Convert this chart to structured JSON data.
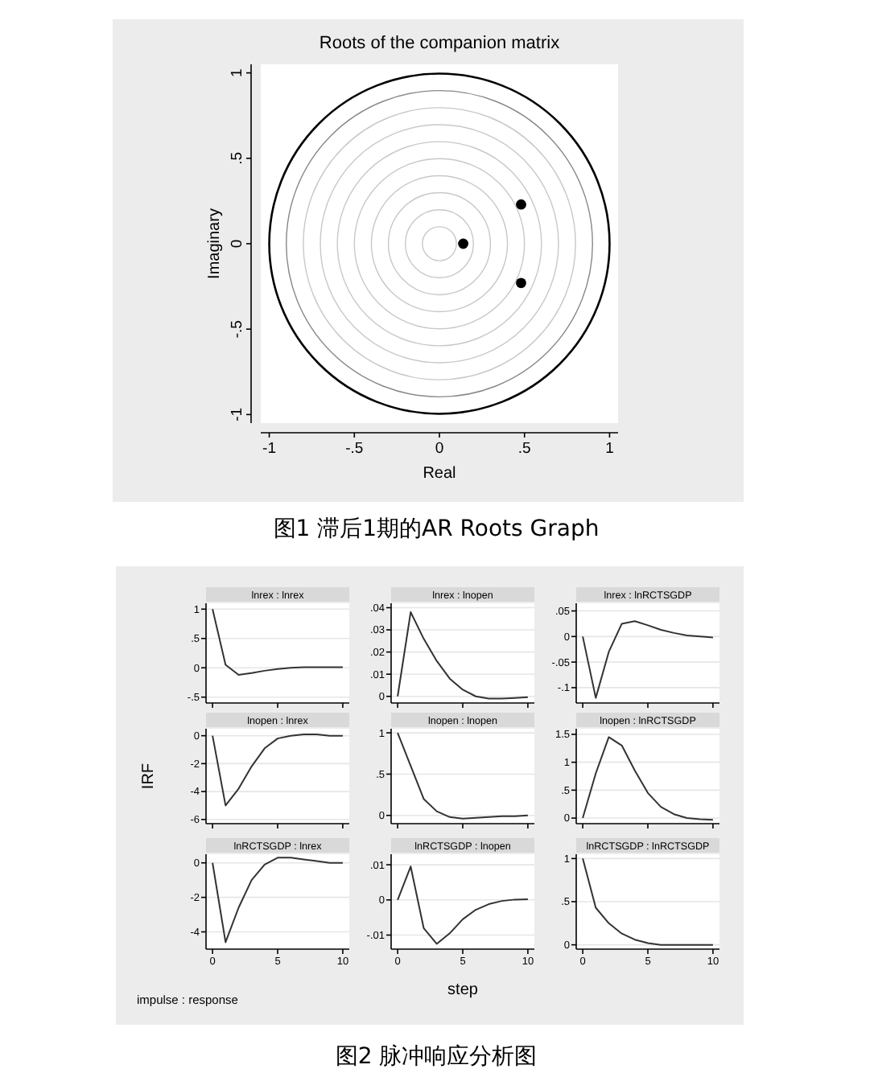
{
  "chart_data": [
    {
      "type": "scatter",
      "title": "Roots of the companion matrix",
      "xlabel": "Real",
      "ylabel": "Imaginary",
      "x": [
        0.14,
        0.48,
        0.48
      ],
      "values": [
        0,
        0.23,
        -0.23
      ],
      "color": "#000000",
      "marker": "circle",
      "xlim": [
        -1.05,
        1.05
      ],
      "ylim": [
        -1.05,
        1.05
      ],
      "xticks": [
        {
          "value": -1,
          "label": "-1"
        },
        {
          "value": -0.5,
          "label": "-.5"
        },
        {
          "value": 0,
          "label": "0"
        },
        {
          "value": 0.5,
          "label": ".5"
        },
        {
          "value": 1,
          "label": "1"
        }
      ],
      "yticks": [
        {
          "value": -1,
          "label": "-1"
        },
        {
          "value": -0.5,
          "label": "-.5"
        },
        {
          "value": 0,
          "label": "0"
        },
        {
          "value": 0.5,
          "label": ".5"
        },
        {
          "value": 1,
          "label": "1"
        }
      ],
      "annotations": [
        "图1 滞后1期的AR Roots Graph"
      ]
    },
    {
      "type": "line",
      "title": "lnrex : lnrex",
      "x": [
        0,
        1,
        2,
        3,
        4,
        5,
        6,
        7,
        8,
        9,
        10
      ],
      "values": [
        1,
        0.05,
        -0.12,
        -0.09,
        -0.05,
        -0.02,
        0,
        0.01,
        0.01,
        0.01,
        0.01
      ],
      "color": "#333333",
      "xlim": [
        -0.5,
        10.5
      ],
      "ylim": [
        -0.6,
        1.1
      ],
      "yticks": [
        {
          "value": -0.5,
          "label": "-.5"
        },
        0,
        {
          "value": 0.5,
          "label": ".5"
        },
        1
      ],
      "xticks": [
        0,
        5,
        10
      ],
      "grid": "y",
      "tick_labels": "y"
    },
    {
      "type": "line",
      "title": "lnrex : lnopen",
      "x": [
        0,
        1,
        2,
        3,
        4,
        5,
        6,
        7,
        8,
        9,
        10
      ],
      "values": [
        0,
        0.038,
        0.026,
        0.016,
        0.008,
        0.003,
        0,
        -0.001,
        -0.001,
        -0.0007,
        -0.0004
      ],
      "color": "#333333",
      "xlim": [
        -0.5,
        10.5
      ],
      "ylim": [
        -0.003,
        0.042
      ],
      "yticks": [
        0,
        {
          "value": 0.01,
          "label": ".01"
        },
        {
          "value": 0.02,
          "label": ".02"
        },
        {
          "value": 0.03,
          "label": ".03"
        },
        {
          "value": 0.04,
          "label": ".04"
        }
      ],
      "xticks": [
        0,
        5,
        10
      ],
      "grid": "y",
      "tick_labels": "y"
    },
    {
      "type": "line",
      "title": "lnrex : lnRCTSGDP",
      "x": [
        0,
        1,
        2,
        3,
        4,
        5,
        6,
        7,
        8,
        9,
        10
      ],
      "values": [
        0,
        -0.12,
        -0.03,
        0.025,
        0.03,
        0.022,
        0.013,
        0.007,
        0.002,
        0,
        -0.002
      ],
      "color": "#333333",
      "xlim": [
        -0.5,
        10.5
      ],
      "ylim": [
        -0.13,
        0.065
      ],
      "yticks": [
        {
          "value": -0.1,
          "label": "-.1"
        },
        {
          "value": -0.05,
          "label": "-.05"
        },
        0,
        {
          "value": 0.05,
          "label": ".05"
        }
      ],
      "xticks": [
        0,
        5,
        10
      ],
      "grid": "y",
      "tick_labels": "y"
    },
    {
      "type": "line",
      "title": "lnopen : lnrex",
      "ylabel": "IRF",
      "x": [
        0,
        1,
        2,
        3,
        4,
        5,
        6,
        7,
        8,
        9,
        10
      ],
      "values": [
        0,
        -5,
        -3.8,
        -2.2,
        -0.9,
        -0.2,
        0,
        0.1,
        0.1,
        0,
        0
      ],
      "color": "#333333",
      "xlim": [
        -0.5,
        10.5
      ],
      "ylim": [
        -6.3,
        0.5
      ],
      "yticks": [
        -6,
        -4,
        -2,
        0
      ],
      "xticks": [
        0,
        5,
        10
      ],
      "grid": "y",
      "tick_labels": "y"
    },
    {
      "type": "line",
      "title": "lnopen : lnopen",
      "x": [
        0,
        1,
        2,
        3,
        4,
        5,
        6,
        7,
        8,
        9,
        10
      ],
      "values": [
        1,
        0.6,
        0.2,
        0.05,
        -0.02,
        -0.04,
        -0.03,
        -0.02,
        -0.01,
        -0.01,
        0
      ],
      "color": "#333333",
      "xlim": [
        -0.5,
        10.5
      ],
      "ylim": [
        -0.1,
        1.05
      ],
      "yticks": [
        0,
        {
          "value": 0.5,
          "label": ".5"
        },
        1
      ],
      "xticks": [
        0,
        5,
        10
      ],
      "grid": "y",
      "tick_labels": "y"
    },
    {
      "type": "line",
      "title": "lnopen : lnRCTSGDP",
      "x": [
        0,
        1,
        2,
        3,
        4,
        5,
        6,
        7,
        8,
        9,
        10
      ],
      "values": [
        0,
        0.8,
        1.45,
        1.3,
        0.85,
        0.45,
        0.2,
        0.07,
        0,
        -0.02,
        -0.03
      ],
      "color": "#333333",
      "xlim": [
        -0.5,
        10.5
      ],
      "ylim": [
        -0.1,
        1.6
      ],
      "yticks": [
        0,
        {
          "value": 0.5,
          "label": ".5"
        },
        1,
        {
          "value": 1.5,
          "label": "1.5"
        }
      ],
      "xticks": [
        0,
        5,
        10
      ],
      "grid": "y",
      "tick_labels": "y"
    },
    {
      "type": "line",
      "title": "lnRCTSGDP : lnrex",
      "annotations": [
        "impulse : response",
        "图2 脉冲响应分析图"
      ],
      "x": [
        0,
        1,
        2,
        3,
        4,
        5,
        6,
        7,
        8,
        9,
        10
      ],
      "values": [
        0,
        -4.6,
        -2.6,
        -1,
        -0.1,
        0.3,
        0.3,
        0.2,
        0.1,
        0,
        0
      ],
      "color": "#333333",
      "xlim": [
        -0.5,
        10.5
      ],
      "ylim": [
        -5,
        0.5
      ],
      "yticks": [
        -4,
        -2,
        0
      ],
      "xticks": [
        0,
        5,
        10
      ],
      "grid": "y"
    },
    {
      "type": "line",
      "title": "lnRCTSGDP : lnopen",
      "xlabel": "step",
      "x": [
        0,
        1,
        2,
        3,
        4,
        5,
        6,
        7,
        8,
        9,
        10
      ],
      "values": [
        0,
        0.0095,
        -0.008,
        -0.0125,
        -0.0095,
        -0.0055,
        -0.0028,
        -0.0012,
        -0.0003,
        0.0001,
        0.0002
      ],
      "color": "#333333",
      "xlim": [
        -0.5,
        10.5
      ],
      "ylim": [
        -0.014,
        0.013
      ],
      "yticks": [
        {
          "value": -0.01,
          "label": "-.01"
        },
        0,
        {
          "value": 0.01,
          "label": ".01"
        }
      ],
      "xticks": [
        0,
        5,
        10
      ],
      "grid": "y"
    },
    {
      "type": "line",
      "title": "lnRCTSGDP : lnRCTSGDP",
      "x": [
        0,
        1,
        2,
        3,
        4,
        5,
        6,
        7,
        8,
        9,
        10
      ],
      "values": [
        1,
        0.43,
        0.25,
        0.13,
        0.06,
        0.02,
        0,
        0,
        0,
        0,
        0
      ],
      "color": "#333333",
      "xlim": [
        -0.5,
        10.5
      ],
      "ylim": [
        -0.05,
        1.05
      ],
      "yticks": [
        0,
        {
          "value": 0.5,
          "label": ".5"
        },
        1
      ],
      "xticks": [
        0,
        5,
        10
      ],
      "grid": "y"
    }
  ]
}
